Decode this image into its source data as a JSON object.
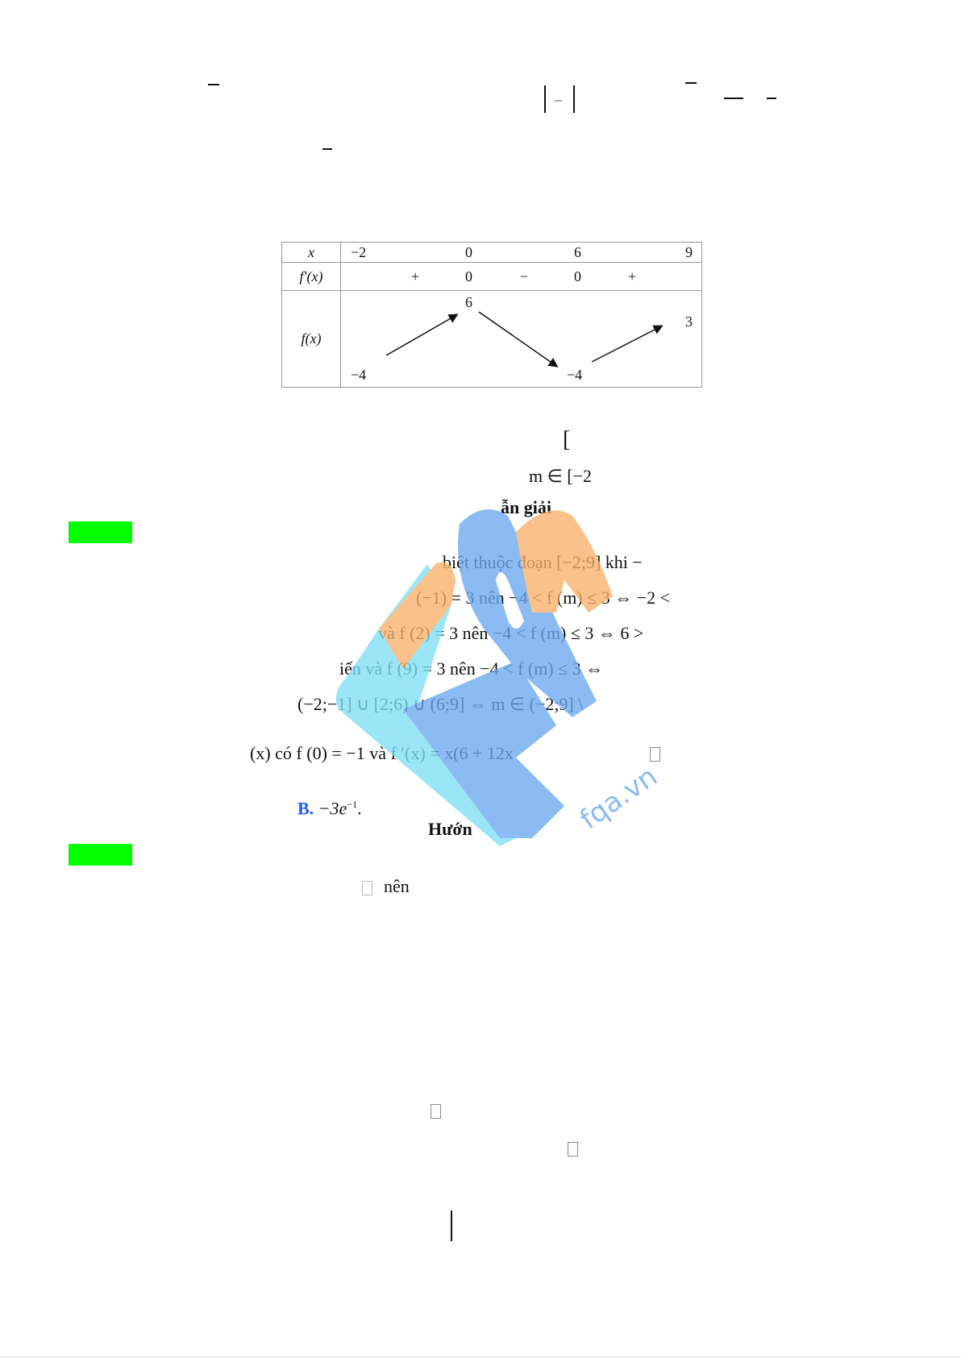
{
  "fragments": {
    "bracket_open": "[",
    "m_in_range": "m ∈ [−2",
    "solution_heading": "ẫn giải",
    "line1": "biệt thuộc đoạn [−2;9] khi −",
    "line2": "(−1) = 3  nên  −4 < f (m) ≤ 3 ⇔ −2 <",
    "line3": "và  f (2) = 3  nên  −4 < f (m) ≤ 3 ⇔ 6 >",
    "line4": "iến và  f (9) = 3  nên  −4 < f (m) ≤ 3 ⇔",
    "line5": "(−2;−1] ∪ [2;6) ∪ (6;9] ⇔ m ∈ (−2;9] \\",
    "line6": "(x)  có  f (0) = −1 và  f ′(x) = x(6 + 12x",
    "option_b_label": "B.",
    "option_b_value": "−3e",
    "option_b_exp": "−1",
    "option_b_dot": ".",
    "guide_heading": "Hướn",
    "nen": "nên",
    "missing_glyph": "□"
  },
  "variation_table": {
    "row_labels": [
      "x",
      "f′(x)",
      "f(x)"
    ],
    "x_values": [
      "−2",
      "0",
      "6",
      "9"
    ],
    "derivative_signs": [
      "+",
      "0",
      "−",
      "0",
      "+"
    ],
    "f_values": {
      "start": "−4",
      "max": "6",
      "min": "−4",
      "end": "3"
    }
  },
  "watermark": {
    "text": "fqa.vn",
    "logo": "FQA",
    "colors": {
      "blue": "#6aaaf0",
      "cyan": "#7ee0f5",
      "orange": "#f9b06a"
    }
  },
  "colors": {
    "highlight": "#00ff00",
    "option_label": "#1a5cff"
  }
}
